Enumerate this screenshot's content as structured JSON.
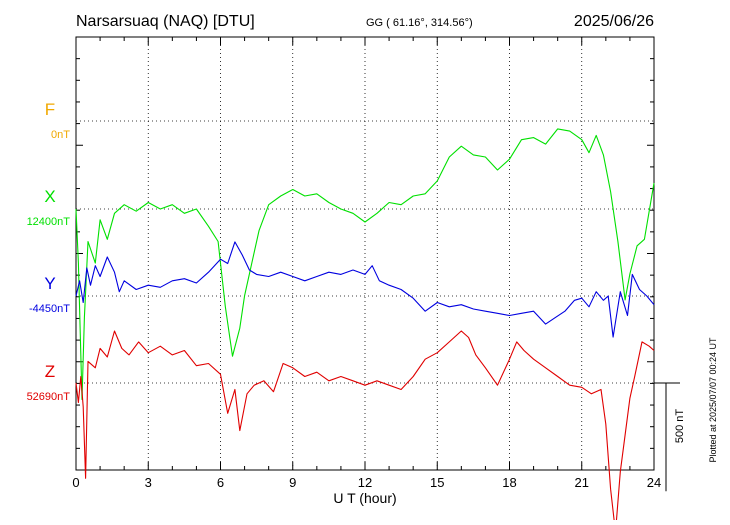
{
  "header": {
    "station": "Narsarsuaq (NAQ)  [DTU]",
    "coords": "GG ( 61.16°, 314.56°)",
    "date": "2025/06/26"
  },
  "side_note": "Plotted at 2025/07/07 00:24 UT",
  "colors": {
    "F": "#f0a800",
    "X": "#00e000",
    "Y": "#0000e0",
    "Z": "#e00000",
    "axis": "#000000",
    "grid": "#000000"
  },
  "chart_data": {
    "type": "line",
    "xlabel": "U T (hour)",
    "xlim": [
      0,
      24
    ],
    "xticks": [
      0,
      3,
      6,
      9,
      12,
      15,
      18,
      21,
      24
    ],
    "scale_bar": {
      "label": "500 nT",
      "value_nT": 500
    },
    "plot_range_nT": 2000,
    "series": [
      {
        "name": "F",
        "baseline_label": "0nT",
        "baseline_nT": 0,
        "color": "#f0a800",
        "x": [],
        "y": []
      },
      {
        "name": "X",
        "baseline_label": "12400nT",
        "baseline_nT": 12400,
        "color": "#00e000",
        "x": [
          0,
          0.1,
          0.25,
          0.35,
          0.5,
          0.8,
          1.0,
          1.3,
          1.6,
          2.0,
          2.5,
          3.0,
          3.5,
          4.0,
          4.5,
          5.0,
          5.5,
          5.9,
          6.2,
          6.5,
          6.8,
          7.0,
          7.3,
          7.6,
          8.0,
          8.5,
          9.0,
          9.5,
          10.0,
          10.5,
          11.0,
          11.5,
          12.0,
          12.5,
          13.0,
          13.5,
          14.0,
          14.5,
          15.0,
          15.5,
          16.0,
          16.5,
          17.0,
          17.5,
          18.0,
          18.5,
          19.0,
          19.5,
          20.0,
          20.5,
          21.0,
          21.3,
          21.6,
          21.9,
          22.2,
          22.5,
          22.8,
          23.0,
          23.3,
          23.6,
          24.0
        ],
        "y": [
          12400,
          12150,
          11520,
          11900,
          12250,
          12150,
          12350,
          12260,
          12380,
          12420,
          12390,
          12430,
          12400,
          12420,
          12380,
          12400,
          12320,
          12250,
          11950,
          11720,
          11850,
          12000,
          12150,
          12300,
          12420,
          12460,
          12490,
          12460,
          12470,
          12430,
          12400,
          12380,
          12340,
          12380,
          12430,
          12420,
          12460,
          12470,
          12530,
          12640,
          12690,
          12650,
          12640,
          12580,
          12630,
          12720,
          12730,
          12700,
          12770,
          12760,
          12720,
          12660,
          12740,
          12650,
          12480,
          12250,
          11980,
          12100,
          12230,
          12260,
          12520
        ]
      },
      {
        "name": "Y",
        "baseline_label": "-4450nT",
        "baseline_nT": -4450,
        "color": "#0000e0",
        "x": [
          0,
          0.15,
          0.3,
          0.45,
          0.6,
          0.8,
          1.0,
          1.3,
          1.6,
          1.8,
          2.0,
          2.5,
          3.0,
          3.5,
          4.0,
          4.5,
          5.0,
          5.5,
          6.0,
          6.3,
          6.6,
          6.9,
          7.2,
          7.5,
          8.0,
          8.5,
          9.0,
          9.5,
          10.0,
          10.5,
          11.0,
          11.5,
          12.0,
          12.3,
          12.6,
          13.0,
          13.5,
          14.0,
          14.5,
          15.0,
          15.5,
          16.0,
          16.5,
          17.0,
          17.5,
          18.0,
          18.5,
          19.0,
          19.5,
          19.9,
          20.3,
          20.7,
          21.0,
          21.3,
          21.6,
          21.9,
          22.1,
          22.3,
          22.6,
          22.9,
          23.1,
          23.4,
          23.7,
          24.0
        ],
        "y": [
          -4450,
          -4380,
          -4480,
          -4320,
          -4400,
          -4310,
          -4360,
          -4270,
          -4340,
          -4430,
          -4380,
          -4420,
          -4400,
          -4410,
          -4380,
          -4370,
          -4390,
          -4340,
          -4280,
          -4300,
          -4200,
          -4260,
          -4330,
          -4350,
          -4360,
          -4340,
          -4360,
          -4380,
          -4360,
          -4340,
          -4350,
          -4330,
          -4350,
          -4310,
          -4380,
          -4400,
          -4420,
          -4460,
          -4520,
          -4480,
          -4500,
          -4490,
          -4510,
          -4520,
          -4530,
          -4540,
          -4530,
          -4520,
          -4580,
          -4550,
          -4520,
          -4470,
          -4460,
          -4500,
          -4430,
          -4470,
          -4450,
          -4640,
          -4430,
          -4540,
          -4350,
          -4420,
          -4450,
          -4490
        ]
      },
      {
        "name": "Z",
        "baseline_label": "52690nT",
        "baseline_nT": 52690,
        "color": "#e00000",
        "x": [
          0,
          0.1,
          0.2,
          0.3,
          0.4,
          0.5,
          0.8,
          1.0,
          1.3,
          1.6,
          1.9,
          2.2,
          2.6,
          3.0,
          3.5,
          4.0,
          4.5,
          5.0,
          5.5,
          6.0,
          6.3,
          6.6,
          6.8,
          7.1,
          7.4,
          7.8,
          8.2,
          8.6,
          9.0,
          9.5,
          10.0,
          10.5,
          11.0,
          11.5,
          12.0,
          12.5,
          13.0,
          13.5,
          14.0,
          14.5,
          15.0,
          15.5,
          16.0,
          16.3,
          16.6,
          17.0,
          17.5,
          18.0,
          18.3,
          18.6,
          19.0,
          19.5,
          20.0,
          20.5,
          21.0,
          21.4,
          21.8,
          22.0,
          22.2,
          22.4,
          22.6,
          22.8,
          23.0,
          23.2,
          23.5,
          23.8,
          24.0
        ],
        "y": [
          52690,
          52600,
          52720,
          52580,
          52250,
          52790,
          52760,
          52850,
          52810,
          52930,
          52850,
          52820,
          52880,
          52830,
          52860,
          52820,
          52840,
          52770,
          52780,
          52730,
          52550,
          52660,
          52470,
          52640,
          52680,
          52700,
          52650,
          52780,
          52760,
          52720,
          52740,
          52700,
          52720,
          52700,
          52680,
          52700,
          52680,
          52660,
          52720,
          52800,
          52830,
          52880,
          52930,
          52900,
          52820,
          52760,
          52680,
          52800,
          52880,
          52840,
          52800,
          52760,
          52720,
          52680,
          52670,
          52640,
          52660,
          52500,
          52200,
          52000,
          52280,
          52450,
          52620,
          52720,
          52880,
          52860,
          52840
        ]
      }
    ]
  }
}
